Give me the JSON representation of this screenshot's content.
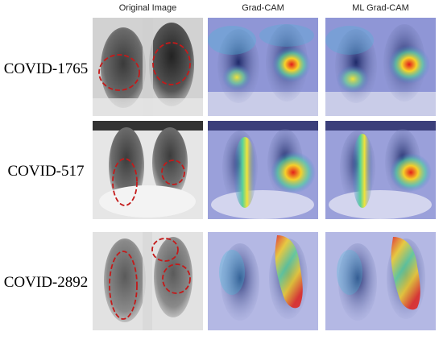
{
  "columns": [
    "Original Image",
    "Grad-CAM",
    "ML Grad-CAM"
  ],
  "rows": [
    {
      "label": "COVID-1765"
    },
    {
      "label": "COVID-517"
    },
    {
      "label": "COVID-2892"
    }
  ],
  "colors": {
    "roi_circle": "#c41a1a",
    "background": "#ffffff"
  }
}
